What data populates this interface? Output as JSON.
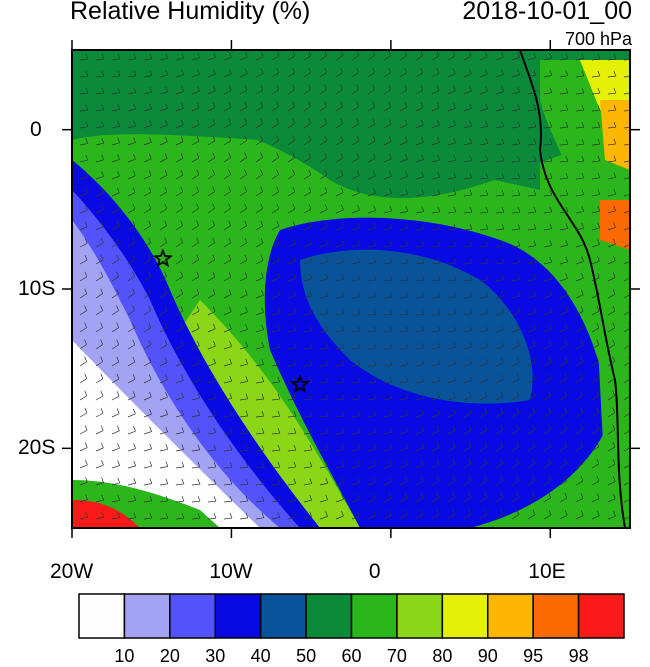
{
  "title_left": "Relative Humidity (%)",
  "title_right": "2018-10-01_00",
  "level_label": "700 hPa",
  "axes": {
    "lon_ticks": [
      {
        "value": -20,
        "label": "20W"
      },
      {
        "value": -10,
        "label": "10W"
      },
      {
        "value": 0,
        "label": "0"
      },
      {
        "value": 10,
        "label": "10E"
      }
    ],
    "lat_ticks": [
      {
        "value": 0,
        "label": "0"
      },
      {
        "value": -10,
        "label": "10S"
      },
      {
        "value": -20,
        "label": "20S"
      }
    ],
    "lon_range": [
      -20,
      15
    ],
    "lat_range": [
      -25,
      5
    ]
  },
  "colorbar": {
    "colors": [
      "#fdfdfd",
      "#a3a3f3",
      "#5353fb",
      "#0909e3",
      "#09539b",
      "#0b8a3a",
      "#2bb61b",
      "#8bd617",
      "#e4f006",
      "#fbb702",
      "#fb6a02",
      "#fb1a1a"
    ],
    "labels": [
      "10",
      "20",
      "30",
      "40",
      "50",
      "60",
      "70",
      "80",
      "90",
      "95",
      "98"
    ]
  },
  "markers": [
    {
      "name": "star-marker-west",
      "lon": -14.3,
      "lat": -8.1
    },
    {
      "name": "star-marker-central",
      "lon": -5.7,
      "lat": -16.0
    }
  ]
}
